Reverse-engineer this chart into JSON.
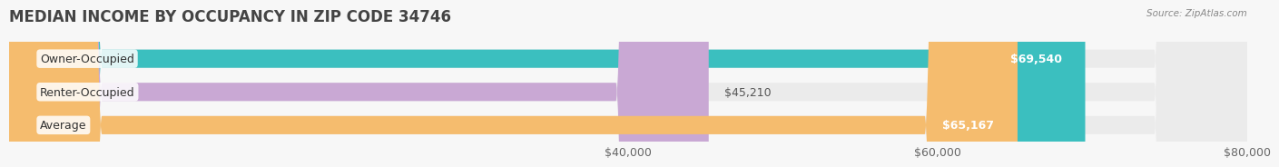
{
  "title": "MEDIAN INCOME BY OCCUPANCY IN ZIP CODE 34746",
  "source": "Source: ZipAtlas.com",
  "categories": [
    "Owner-Occupied",
    "Renter-Occupied",
    "Average"
  ],
  "values": [
    69540,
    45210,
    65167
  ],
  "bar_colors": [
    "#3bbfbf",
    "#c9a8d4",
    "#f5bc6e"
  ],
  "bar_bg_color": "#ebebeb",
  "label_texts": [
    "$69,540",
    "$45,210",
    "$65,167"
  ],
  "label_inside": [
    true,
    false,
    true
  ],
  "label_outside_texts": [
    "",
    "$45,210",
    ""
  ],
  "xlim": [
    0,
    80000
  ],
  "xticks": [
    40000,
    60000,
    80000
  ],
  "xtick_labels": [
    "$40,000",
    "$60,000",
    "$80,000"
  ],
  "title_fontsize": 12,
  "tick_fontsize": 9,
  "bar_label_fontsize": 9,
  "category_fontsize": 9,
  "bar_height": 0.55,
  "bg_color": "#f7f7f7",
  "grid_color": "#d0d0d0"
}
